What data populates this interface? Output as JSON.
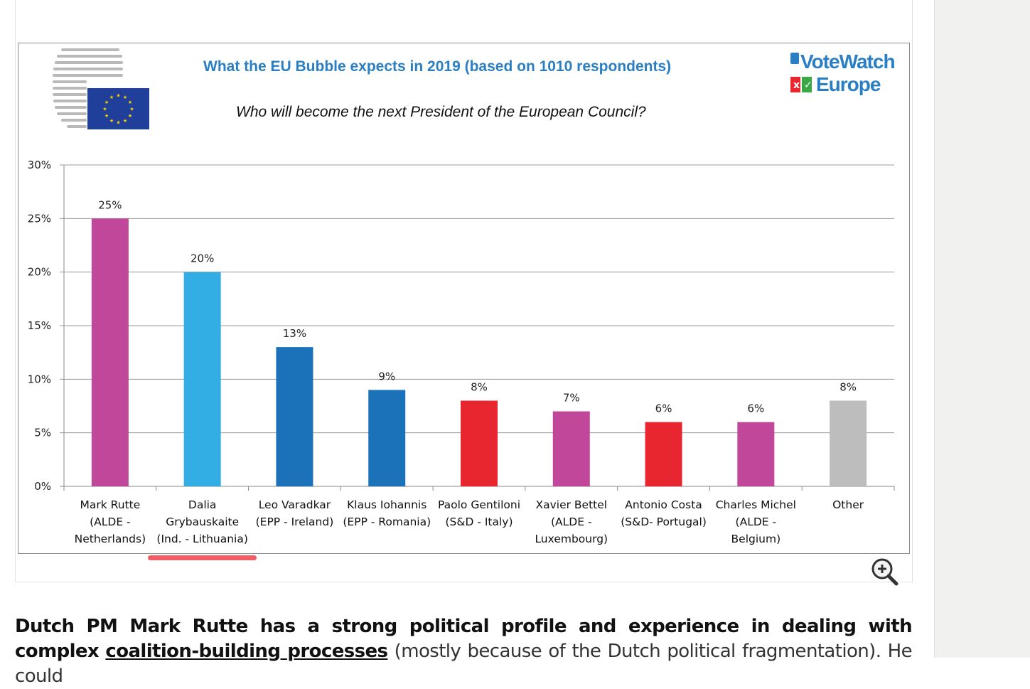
{
  "chart_data": {
    "type": "bar",
    "title": "What the EU Bubble expects in 2019 (based on 1010 respondents)",
    "subtitle": "Who will  become the next President of the European Council?",
    "categories": [
      [
        "Mark Rutte",
        "(ALDE -",
        "Netherlands)"
      ],
      [
        "Dalia",
        "Grybauskaite",
        "(Ind. - Lithuania)"
      ],
      [
        "Leo Varadkar",
        "(EPP - Ireland)"
      ],
      [
        "Klaus Iohannis",
        "(EPP - Romania)"
      ],
      [
        "Paolo Gentiloni",
        "(S&D - Italy)"
      ],
      [
        "Xavier Bettel",
        "(ALDE -",
        "Luxembourg)"
      ],
      [
        "Antonio Costa",
        "(S&D- Portugal)"
      ],
      [
        "Charles Michel",
        "(ALDE -",
        "Belgium)"
      ],
      [
        "Other"
      ]
    ],
    "values": [
      25,
      20,
      13,
      9,
      8,
      7,
      6,
      6,
      8
    ],
    "data_labels": [
      "25%",
      "20%",
      "13%",
      "9%",
      "8%",
      "7%",
      "6%",
      "6%",
      "8%"
    ],
    "colors": [
      "#c0479a",
      "#33aee4",
      "#1c72b9",
      "#1c72b9",
      "#e8262f",
      "#c0479a",
      "#e8262f",
      "#c0479a",
      "#bdbdbd"
    ],
    "yticks": [
      0,
      5,
      10,
      15,
      20,
      25,
      30
    ],
    "ytick_labels": [
      "0%",
      "5%",
      "10%",
      "15%",
      "20%",
      "25%",
      "30%"
    ],
    "ylim": [
      0,
      30
    ],
    "grid": true,
    "legend": "none"
  },
  "logos": {
    "left": "european-council-logo",
    "right_line1": "VoteWatch",
    "right_line2": "Europe"
  },
  "article": {
    "bold_part": "Dutch PM Mark Rutte has a strong political profile and experience in dealing with complex",
    "bold_underlined_part": "coalition-building processes",
    "rest": " (mostly because of the Dutch political fragmentation). He could"
  },
  "icons": {
    "zoom": "zoom-in-icon"
  }
}
